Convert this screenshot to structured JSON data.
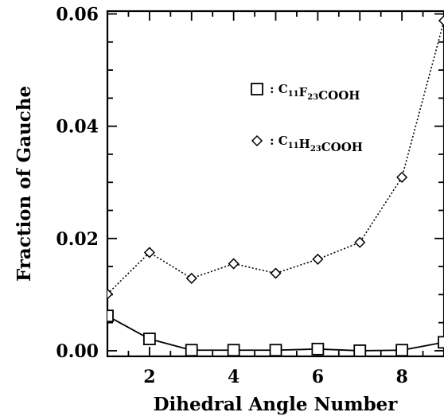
{
  "chart_data": {
    "type": "line",
    "title": "",
    "xlabel": "Dihedral Angle Number",
    "ylabel": "Fraction of Gauche",
    "xlim": [
      1,
      9
    ],
    "ylim": [
      -0.001,
      0.0605
    ],
    "x_ticks": [
      "2",
      "4",
      "6",
      "8"
    ],
    "y_ticks": [
      "0.00",
      "0.02",
      "0.04",
      "0.06"
    ],
    "grid": false,
    "legend_position": "upper-center",
    "series": [
      {
        "name": "C11F23COOH",
        "legend_parts": [
          {
            "text": ": C",
            "sub": false
          },
          {
            "text": "11",
            "sub": true
          },
          {
            "text": "F",
            "sub": false
          },
          {
            "text": "23",
            "sub": true
          },
          {
            "text": "COOH",
            "sub": false
          }
        ],
        "marker": "square",
        "line_style": "solid",
        "x": [
          1,
          2,
          3,
          4,
          5,
          6,
          7,
          8,
          9
        ],
        "y": [
          0.0062,
          0.0021,
          0.0001,
          0.0001,
          0.0001,
          0.0003,
          0.0,
          0.0001,
          0.0015
        ]
      },
      {
        "name": "C11H23COOH",
        "legend_parts": [
          {
            "text": ": C",
            "sub": false
          },
          {
            "text": "11",
            "sub": true
          },
          {
            "text": "H",
            "sub": false
          },
          {
            "text": "23",
            "sub": true
          },
          {
            "text": "COOH",
            "sub": false
          }
        ],
        "marker": "diamond",
        "line_style": "dotted",
        "x": [
          1,
          2,
          3,
          4,
          5,
          6,
          7,
          8,
          9
        ],
        "y": [
          0.0101,
          0.0175,
          0.0129,
          0.0155,
          0.0138,
          0.0163,
          0.0193,
          0.0309,
          0.0588
        ]
      }
    ]
  }
}
